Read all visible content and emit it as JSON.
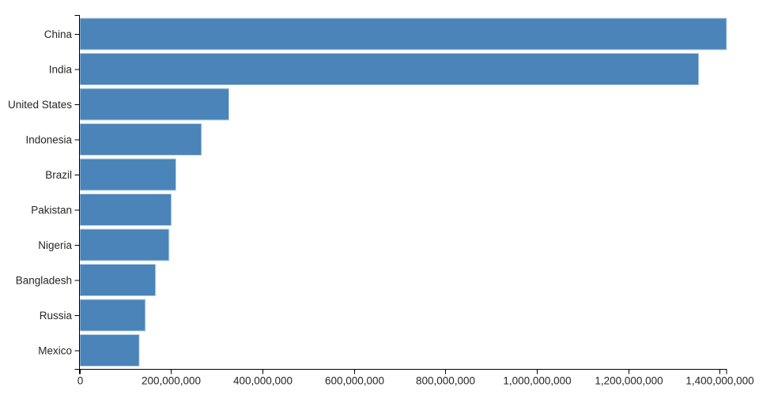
{
  "page": {
    "background_color": "#ffffff"
  },
  "chart_data": {
    "type": "bar",
    "orientation": "horizontal",
    "title": "",
    "xlabel": "",
    "ylabel": "",
    "categories": [
      "China",
      "India",
      "United States",
      "Indonesia",
      "Brazil",
      "Pakistan",
      "Nigeria",
      "Bangladesh",
      "Russia",
      "Mexico"
    ],
    "values": [
      1415045928,
      1354051854,
      326766748,
      266794980,
      210867954,
      200813818,
      195875237,
      166368149,
      143964709,
      130759074
    ],
    "xlim": [
      0,
      1415045928
    ],
    "x_tick_step": 200000000,
    "x_tick_labels": [
      "0",
      "200,000,000",
      "400,000,000",
      "600,000,000",
      "800,000,000",
      "1,000,000,000",
      "1,200,000,000",
      "1,400,000,000"
    ],
    "grid": false,
    "legend": false,
    "bar_color": "#4a84b8",
    "bar_edge_color": "#c3d7e8",
    "axis_color": "#000000",
    "tick_label_color": "#262626"
  }
}
